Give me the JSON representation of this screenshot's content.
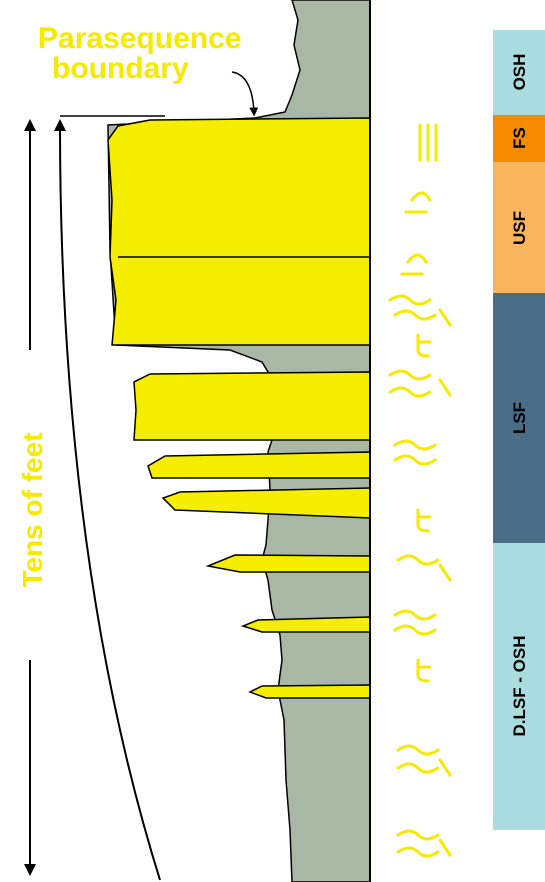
{
  "annotation": {
    "lines": [
      "Parasequence",
      "boundary"
    ]
  },
  "scale_label": "Tens of feet",
  "facies": [
    {
      "label": "OSH"
    },
    {
      "label": "FS"
    },
    {
      "label": "USF"
    },
    {
      "label": "LSF"
    },
    {
      "label": "D.LSF - OSH"
    }
  ]
}
